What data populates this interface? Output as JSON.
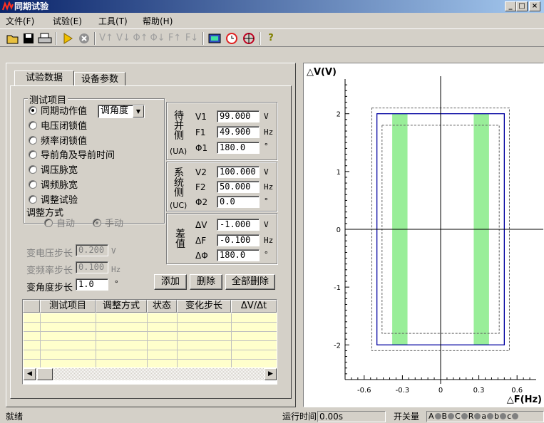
{
  "window": {
    "title": "同期试验",
    "minimize": "_",
    "maximize": "□",
    "close": "×"
  },
  "menu": [
    "文件(F)",
    "试验(E)",
    "工具(T)",
    "帮助(H)"
  ],
  "toolbar": {
    "vt": "V↑",
    "vd": "V↓",
    "pt": "Φ↑",
    "pd": "Φ↓",
    "ft": "F↑",
    "fd": "F↓",
    "help": "?"
  },
  "tabs": [
    "试验数据",
    "设备参数"
  ],
  "test_items": {
    "title": "测试项目",
    "options": [
      "同期动作值",
      "电压闭锁值",
      "频率闭锁值",
      "导前角及导前时间",
      "调压脉宽",
      "调频脉宽",
      "调整试验"
    ],
    "selected": 0,
    "combo_value": "调角度"
  },
  "adjust_mode": {
    "title": "调整方式",
    "auto": "自动",
    "manual": "手动",
    "selected": "manual"
  },
  "steps": [
    {
      "label": "变电压步长",
      "value": "0.200",
      "unit": "V",
      "enabled": false
    },
    {
      "label": "变频率步长",
      "value": "0.100",
      "unit": "Hz",
      "enabled": false
    },
    {
      "label": "变角度步长",
      "value": "1.0",
      "unit": "°",
      "enabled": true
    }
  ],
  "groups": [
    {
      "label": "待并侧",
      "sub": "(UA)",
      "rows": [
        {
          "name": "V1",
          "value": "99.000",
          "unit": "V"
        },
        {
          "name": "F1",
          "value": "49.900",
          "unit": "Hz"
        },
        {
          "name": "Φ1",
          "value": "180.0",
          "unit": "°"
        }
      ]
    },
    {
      "label": "系统侧",
      "sub": "(UC)",
      "rows": [
        {
          "name": "V2",
          "value": "100.000",
          "unit": "V"
        },
        {
          "name": "F2",
          "value": "50.000",
          "unit": "Hz"
        },
        {
          "name": "Φ2",
          "value": "0.0",
          "unit": "°"
        }
      ]
    },
    {
      "label": "差值",
      "sub": "",
      "rows": [
        {
          "name": "ΔV",
          "value": "-1.000",
          "unit": "V"
        },
        {
          "name": "ΔF",
          "value": "-0.100",
          "unit": "Hz"
        },
        {
          "name": "ΔΦ",
          "value": "180.0",
          "unit": "°"
        }
      ]
    }
  ],
  "buttons": {
    "add": "添加",
    "delete": "删除",
    "delete_all": "全部删除"
  },
  "grid": {
    "headers": [
      "测试项目",
      "调整方式",
      "状态",
      "变化步长",
      "ΔV/Δt"
    ]
  },
  "chart_data": {
    "type": "scatter",
    "title": "",
    "xlabel": "△F(Hz)",
    "ylabel": "△V(V)",
    "xlim": [
      -0.75,
      0.75
    ],
    "ylim": [
      -2.6,
      2.6
    ],
    "xticks": [
      -0.6,
      -0.3,
      0,
      0.3,
      0.6
    ],
    "yticks": [
      2,
      1,
      0,
      -1,
      -2
    ],
    "grid": false,
    "outer_rect": {
      "x": [
        -0.5,
        0.5
      ],
      "y": [
        -2.0,
        2.0
      ]
    },
    "inner_dashed": {
      "x": [
        -0.46,
        0.46
      ],
      "y": [
        -1.8,
        1.8
      ]
    },
    "outer_dashed": {
      "x": [
        -0.54,
        0.54
      ],
      "y": [
        -2.1,
        2.1
      ]
    },
    "green_bands": [
      {
        "x": [
          -0.38,
          -0.26
        ]
      },
      {
        "x": [
          0.26,
          0.38
        ]
      }
    ],
    "colors": {
      "rect": "#0000a0",
      "band": "#99ee99",
      "axis": "#000000"
    }
  },
  "status": {
    "ready": "就绪",
    "runtime_label": "运行时间",
    "runtime": "0.00s",
    "switch_label": "开关量",
    "leds": [
      "A",
      "B",
      "C",
      "R",
      "a",
      "b",
      "c"
    ]
  }
}
